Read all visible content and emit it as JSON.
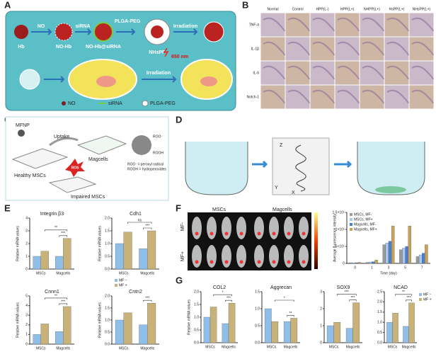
{
  "panels": {
    "A": {
      "letter": "A",
      "labels": [
        "Hb",
        "NO",
        "NO-Hb",
        "siRNA",
        "NO-Hb@siRNA",
        "PLGA-PEG",
        "NHsPP",
        "Irradiation",
        "650 nm",
        "Irradiation"
      ],
      "legend": [
        "NO",
        "siRNA",
        "PLGA-PEG"
      ]
    },
    "B": {
      "letter": "B",
      "columns": [
        "Normal",
        "Control",
        "HPP(L-)",
        "HPP(L+)",
        "NHPP(L+)",
        "HsPP(L+)",
        "NHsPP(L+)"
      ],
      "rows": [
        "TNF-α",
        "IL-1β",
        "IL-6",
        "Notch-1"
      ]
    },
    "C": {
      "letter": "C",
      "labels": [
        "MFNP",
        "Uptake",
        "Magcells",
        "Healthy MSCs",
        "ROS",
        "Impaired MSCs",
        "ROO·",
        "ROOH"
      ],
      "notes": [
        "ROO· = peroxyl radical",
        "ROOH = hydroperoxides"
      ]
    },
    "D": {
      "letter": "D",
      "axes": [
        "Z",
        "Y",
        "X"
      ]
    },
    "E": {
      "letter": "E"
    },
    "F": {
      "letter": "F",
      "image_columns": [
        "MSCs",
        "Magcells"
      ],
      "image_rows": [
        "MF-",
        "MF+"
      ]
    },
    "G": {
      "letter": "G"
    }
  },
  "chart_data": [
    {
      "type": "bar",
      "title": "Integrin β3",
      "ylabel": "Relative mRNA values",
      "categories": [
        "MSCs",
        "Magcells"
      ],
      "series": [
        {
          "color": "#8fbfe8",
          "values": [
            1.0,
            1.0
          ]
        },
        {
          "color": "#c9b27a",
          "values": [
            1.4,
            2.4
          ]
        }
      ],
      "ylim": [
        0,
        4
      ],
      "yticks": [
        0,
        1,
        2,
        3,
        4
      ],
      "sig_across": "**",
      "sig_within": "***"
    },
    {
      "type": "bar",
      "title": "Cdh1",
      "ylabel": "Relative mRNA values",
      "categories": [
        "MSCs",
        "Magcells"
      ],
      "series": [
        {
          "color": "#8fbfe8",
          "values": [
            1.0,
            0.8
          ]
        },
        {
          "color": "#c9b27a",
          "values": [
            1.45,
            1.5
          ]
        }
      ],
      "ylim": [
        0,
        2
      ],
      "yticks": [
        {
          "value": 0,
          "label": "0.0"
        },
        0.5,
        {
          "value": 1,
          "label": "1.0"
        },
        1.5,
        {
          "value": 2,
          "label": "2.0"
        }
      ],
      "sig_across": "ns",
      "sig_within": "***"
    },
    {
      "type": "bar",
      "title": "Cnnn1",
      "ylabel": "Relative mRNA values",
      "categories": [
        "MSCs",
        "Magcells"
      ],
      "series": [
        {
          "color": "#8fbfe8",
          "values": [
            1.0,
            1.3
          ]
        },
        {
          "color": "#c9b27a",
          "values": [
            2.1,
            3.9
          ]
        }
      ],
      "ylim": [
        0,
        5
      ],
      "yticks": [
        0,
        1,
        2,
        3,
        4,
        5
      ],
      "sig_across": "**",
      "sig_within": "***"
    },
    {
      "type": "bar",
      "title": "Cntn2",
      "ylabel": "Relative mRNA values",
      "categories": [
        "MSCs",
        "Magcells"
      ],
      "series": [
        {
          "name": "MF −",
          "color": "#8fbfe8",
          "values": [
            1.0,
            0.8
          ]
        },
        {
          "name": "MF +",
          "color": "#c9b27a",
          "values": [
            1.3,
            1.7
          ]
        }
      ],
      "ylim": [
        0,
        2
      ],
      "yticks": [
        {
          "value": 0,
          "label": "0.0"
        },
        0.5,
        {
          "value": 1,
          "label": "1.0"
        },
        1.5,
        {
          "value": 2,
          "label": "2.0"
        }
      ],
      "sig_within": "***",
      "legend": "top-left"
    },
    {
      "type": "bar",
      "ylabel": "Average fluorescence intensity",
      "xlabel": "Time (day)",
      "categories": [
        "0",
        "1",
        "3",
        "5",
        "7"
      ],
      "series": [
        {
          "name": "MSCs, MF-",
          "color": "#9a9a9a",
          "values": [
            20000,
            30000,
            550000,
            400000,
            200000
          ]
        },
        {
          "name": "MSCs, MF+",
          "color": "#a9c8ee",
          "values": [
            20000,
            40000,
            600000,
            450000,
            250000
          ]
        },
        {
          "name": "Magcells, MF-",
          "color": "#4d7fd1",
          "values": [
            20000,
            50000,
            650000,
            500000,
            300000
          ]
        },
        {
          "name": "Magcells, MF+",
          "color": "#c9a25a",
          "values": [
            30000,
            100000,
            1100000,
            1100000,
            550000
          ]
        }
      ],
      "ylim": [
        0,
        1500000
      ],
      "yticks": [
        0,
        {
          "value": 500000,
          "label": "5×10⁵"
        },
        {
          "value": 1000000,
          "label": "1×10⁶"
        },
        {
          "value": 1500000,
          "label": "1.5×10⁶"
        }
      ],
      "legend": "top-left"
    },
    {
      "type": "bar",
      "title": "COL2",
      "ylabel": "Relative mRNA values",
      "categories": [
        "MSCs",
        "Magcells"
      ],
      "series": [
        {
          "color": "#8fbfe8",
          "values": [
            1.0,
            0.75
          ]
        },
        {
          "color": "#c9b27a",
          "values": [
            1.4,
            1.55
          ]
        }
      ],
      "ylim": [
        0,
        2
      ],
      "yticks": [
        {
          "value": 0,
          "label": "0.0"
        },
        0.5,
        {
          "value": 1,
          "label": "1.0"
        },
        1.5,
        {
          "value": 2,
          "label": "2.0"
        }
      ],
      "sig_across": "*",
      "sig_within": "***"
    },
    {
      "type": "bar",
      "title": "Aggrecan",
      "categories": [
        "MSCs",
        "Magcells"
      ],
      "series": [
        {
          "color": "#8fbfe8",
          "values": [
            1.0,
            0.62
          ]
        },
        {
          "color": "#c9b27a",
          "values": [
            0.62,
            0.72
          ]
        }
      ],
      "ylim": [
        0,
        1.5
      ],
      "yticks": [
        {
          "value": 0,
          "label": "0.0"
        },
        0.5,
        {
          "value": 1,
          "label": "1.0"
        },
        1.5
      ],
      "sig_across": "*",
      "sig_within": "**"
    },
    {
      "type": "bar",
      "title": "SOX9",
      "categories": [
        "MSCs",
        "Magcells"
      ],
      "series": [
        {
          "color": "#8fbfe8",
          "values": [
            1.0,
            0.85
          ]
        },
        {
          "color": "#c9b27a",
          "values": [
            1.2,
            2.35
          ]
        }
      ],
      "ylim": [
        0,
        3
      ],
      "yticks": [
        0,
        1,
        2,
        3
      ],
      "sig_across": "***",
      "sig_within": "***"
    },
    {
      "type": "bar",
      "title": "NCAD",
      "categories": [
        "MSCs",
        "Magcells"
      ],
      "series": [
        {
          "name": "MF −",
          "color": "#8fbfe8",
          "values": [
            1.0,
            0.8
          ]
        },
        {
          "name": "MF +",
          "color": "#c9b27a",
          "values": [
            1.45,
            1.95
          ]
        }
      ],
      "ylim": [
        0,
        2.5
      ],
      "yticks": [
        {
          "value": 0,
          "label": "0.0"
        },
        0.5,
        {
          "value": 1,
          "label": "1.0"
        },
        1.5,
        {
          "value": 2,
          "label": "2.0"
        },
        2.5
      ],
      "sig_across": "**",
      "sig_within": "***",
      "legend": "right"
    }
  ]
}
